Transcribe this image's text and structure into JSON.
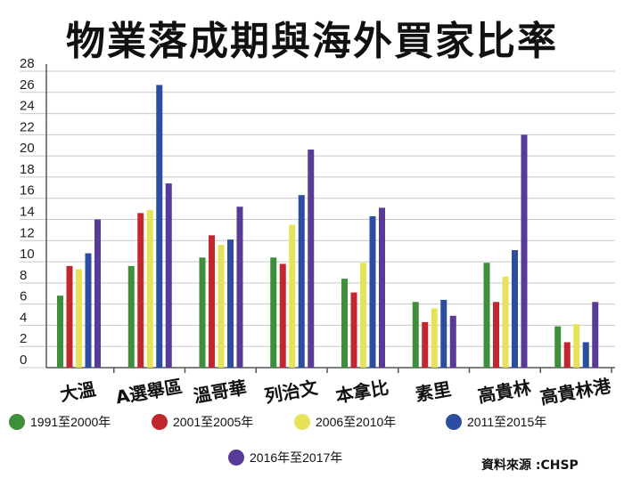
{
  "chart_data": {
    "type": "bar",
    "title": "物業落成期與海外買家比率",
    "categories": [
      "大溫",
      "A選舉區",
      "溫哥華",
      "列治文",
      "本拿比",
      "素里",
      "高貴林",
      "高貴林港"
    ],
    "ylim": [
      0,
      28
    ],
    "yticks": [
      0,
      2,
      4,
      6,
      8,
      10,
      12,
      14,
      16,
      18,
      20,
      22,
      24,
      26,
      28
    ],
    "grid": true,
    "series": [
      {
        "name": "1991至2000年",
        "color": "#3e8e3a",
        "values": [
          6.8,
          9.6,
          10.4,
          10.4,
          8.4,
          6.2,
          9.9,
          3.9
        ]
      },
      {
        "name": "2001至2005年",
        "color": "#c1272d",
        "values": [
          9.6,
          14.6,
          12.5,
          9.8,
          7.1,
          4.3,
          6.2,
          2.4
        ]
      },
      {
        "name": "2006至2010年",
        "color": "#e5e35a",
        "values": [
          9.3,
          14.9,
          11.6,
          13.5,
          9.9,
          5.6,
          8.6,
          4.1
        ]
      },
      {
        "name": "2011至2015年",
        "color": "#2c4ea0",
        "values": [
          10.8,
          26.7,
          12.1,
          16.3,
          14.3,
          6.4,
          11.1,
          2.4
        ]
      },
      {
        "name": "2016年至2017年",
        "color": "#5a3a97",
        "values": [
          14.0,
          17.4,
          15.2,
          20.6,
          15.1,
          4.9,
          22.0,
          6.2
        ]
      }
    ]
  },
  "source": "資料來源 :CHSP"
}
